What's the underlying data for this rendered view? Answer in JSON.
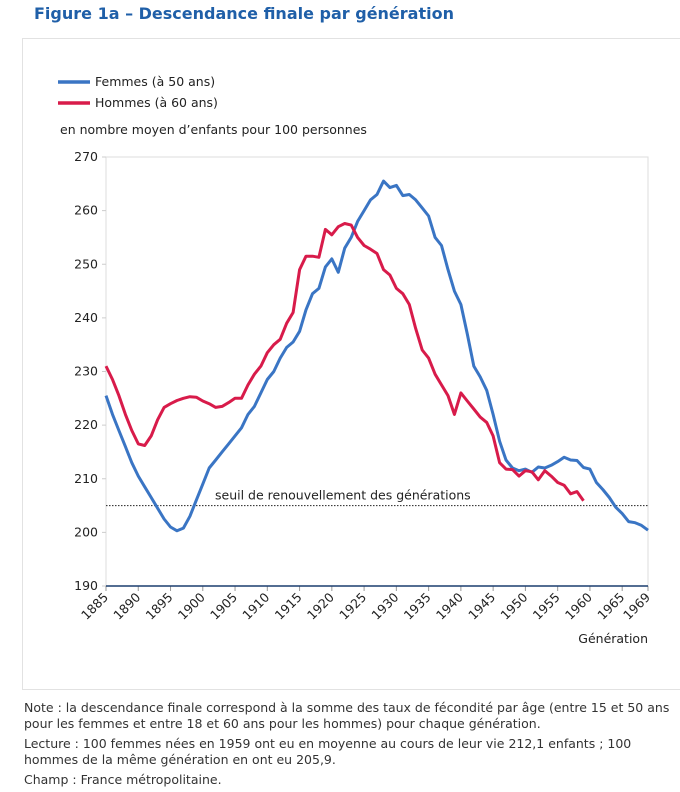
{
  "chart_data": {
    "type": "line",
    "title": "Figure 1a – Descendance finale par génération",
    "y_label": "en nombre moyen d’enfants pour 100 personnes",
    "x_label": "Génération",
    "annotation": "seuil de renouvellement des générations",
    "threshold": 205,
    "x": [
      1885,
      1886,
      1887,
      1888,
      1889,
      1890,
      1891,
      1892,
      1893,
      1894,
      1895,
      1896,
      1897,
      1898,
      1899,
      1900,
      1901,
      1902,
      1903,
      1904,
      1905,
      1906,
      1907,
      1908,
      1909,
      1910,
      1911,
      1912,
      1913,
      1914,
      1915,
      1916,
      1917,
      1918,
      1919,
      1920,
      1921,
      1922,
      1923,
      1924,
      1925,
      1926,
      1927,
      1928,
      1929,
      1930,
      1931,
      1932,
      1933,
      1934,
      1935,
      1936,
      1937,
      1938,
      1939,
      1940,
      1941,
      1942,
      1943,
      1944,
      1945,
      1946,
      1947,
      1948,
      1949,
      1950,
      1951,
      1952,
      1953,
      1954,
      1955,
      1956,
      1957,
      1958,
      1959,
      1960,
      1961,
      1962,
      1963,
      1964,
      1965,
      1966,
      1967,
      1968,
      1969
    ],
    "series": [
      {
        "name": "Femmes (à 50 ans)",
        "color": "#3a75c4",
        "values": [
          225.5,
          222,
          219,
          216,
          213,
          210.5,
          208.5,
          206.5,
          204.5,
          202.5,
          201,
          200.3,
          200.8,
          203,
          206,
          209,
          212,
          213.5,
          215,
          216.5,
          218,
          219.5,
          222,
          223.5,
          226,
          228.5,
          230,
          232.5,
          234.5,
          235.5,
          237.5,
          241.5,
          244.5,
          245.5,
          249.5,
          251,
          248.5,
          253,
          255,
          258,
          260,
          262,
          263,
          265.5,
          264.3,
          264.7,
          262.8,
          263,
          262,
          260.5,
          259,
          255,
          253.5,
          249,
          245,
          242.5,
          237,
          231,
          229,
          226.5,
          222,
          217,
          213.5,
          212,
          211.5,
          211.8,
          211.2,
          212.2,
          212,
          212.5,
          213.2,
          214,
          213.5,
          213.4,
          212.1,
          211.8,
          209.3,
          208,
          206.5,
          204.7,
          203.5,
          202,
          201.8,
          201.3,
          200.4
        ]
      },
      {
        "name": "Hommes (à 60 ans)",
        "color": "#d81b4a",
        "values": [
          231,
          228.5,
          225.5,
          222,
          219,
          216.5,
          216.2,
          218,
          221,
          223.3,
          224,
          224.6,
          225,
          225.3,
          225.2,
          224.5,
          224,
          223.3,
          223.5,
          224.2,
          225,
          225,
          227.5,
          229.5,
          231,
          233.5,
          235,
          236,
          239,
          241,
          249,
          251.5,
          251.5,
          251.3,
          256.5,
          255.5,
          257,
          257.6,
          257.3,
          255,
          253.5,
          252.8,
          252,
          249,
          248,
          245.5,
          244.5,
          242.5,
          238,
          234,
          232.5,
          229.5,
          227.5,
          225.5,
          222,
          226,
          224.5,
          223,
          221.5,
          220.5,
          218,
          213,
          211.8,
          211.7,
          210.5,
          211.5,
          211.3,
          209.8,
          211.5,
          210.5,
          209.3,
          208.8,
          207.2,
          207.6,
          205.9,
          null,
          null,
          null,
          null,
          null,
          null,
          null,
          null,
          null,
          null
        ]
      }
    ],
    "xlim": [
      1885,
      1969
    ],
    "xticks": [
      1885,
      1890,
      1895,
      1900,
      1905,
      1910,
      1915,
      1920,
      1925,
      1930,
      1935,
      1940,
      1945,
      1950,
      1955,
      1960,
      1965,
      1969
    ],
    "ylim": [
      190,
      270
    ],
    "yticks": [
      190,
      200,
      210,
      220,
      230,
      240,
      250,
      260,
      270
    ],
    "grid": false,
    "legend": "top-left"
  },
  "notes": [
    "Note : la descendance finale correspond à la somme des taux de fécondité par âge (entre 15 et 50 ans pour les femmes et entre 18 et 60 ans pour les hommes) pour chaque génération.",
    "Lecture : 100 femmes nées en 1959 ont eu en moyenne au cours de leur vie 212,1 enfants ; 100 hommes de la même génération en ont eu 205,9.",
    "Champ : France métropolitaine."
  ]
}
